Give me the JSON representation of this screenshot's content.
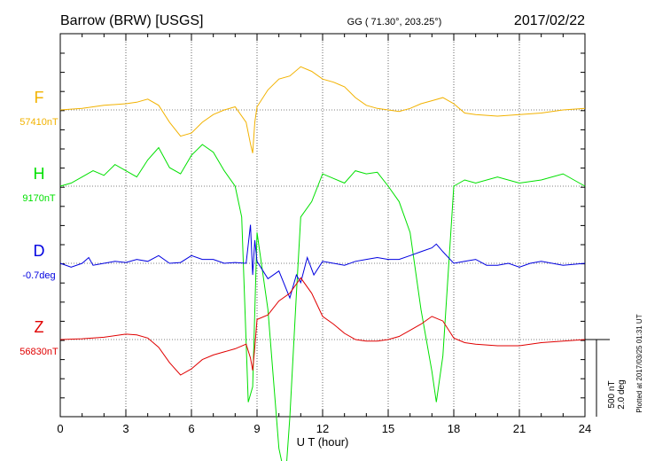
{
  "chart_data": {
    "type": "line",
    "title": "Barrow (BRW)  [USGS]",
    "coordinates": "GG ( 71.30°, 203.25°)",
    "date": "2017/02/22",
    "xlabel": "U T (hour)",
    "xlim": [
      0,
      24
    ],
    "x_ticks": [
      "0",
      "3",
      "6",
      "9",
      "12",
      "15",
      "18",
      "21",
      "24"
    ],
    "grid": true,
    "scale_label_1": "500 nT",
    "scale_label_2": "2.0 deg",
    "plotted_note": "Plotted at 2017/03/25 01:31  UT",
    "colors": {
      "F": "#f2b200",
      "H": "#00e000",
      "D": "#0000e0",
      "Z": "#e00000",
      "axis": "#000000",
      "grid": "#000000"
    },
    "series": [
      {
        "name": "F",
        "baseline": "57410nT",
        "color": "#f2b200",
        "x": [
          0,
          1,
          2,
          3,
          3.5,
          4,
          4.5,
          5,
          5.5,
          6,
          6.5,
          7,
          7.5,
          8,
          8.5,
          8.7,
          8.8,
          8.9,
          9,
          9.5,
          10,
          10.5,
          11,
          11.5,
          12,
          12.5,
          13,
          13.5,
          14,
          14.5,
          15,
          15.5,
          16,
          16.5,
          17,
          17.5,
          18,
          18.5,
          19,
          20,
          21,
          22,
          23,
          24
        ],
        "values": [
          0,
          10,
          30,
          40,
          50,
          70,
          30,
          -80,
          -170,
          -150,
          -80,
          -30,
          0,
          20,
          -80,
          -220,
          -280,
          -80,
          20,
          130,
          200,
          220,
          280,
          250,
          200,
          180,
          150,
          80,
          30,
          10,
          0,
          -10,
          10,
          40,
          60,
          80,
          40,
          -20,
          -30,
          -40,
          -30,
          -20,
          0,
          10
        ]
      },
      {
        "name": "H",
        "baseline": "9170nT",
        "color": "#00e000",
        "x": [
          0,
          0.5,
          1,
          1.5,
          2,
          2.5,
          3,
          3.5,
          4,
          4.5,
          5,
          5.5,
          6,
          6.5,
          7,
          7.5,
          8,
          8.3,
          8.6,
          8.8,
          9,
          9.5,
          10,
          10.3,
          10.5,
          10.8,
          11,
          11.5,
          12,
          12.5,
          13,
          13.5,
          14,
          14.5,
          15,
          15.5,
          16,
          16.5,
          17,
          17.2,
          17.5,
          18,
          18.5,
          19,
          20,
          21,
          22,
          23,
          24
        ],
        "values": [
          0,
          20,
          60,
          100,
          70,
          140,
          100,
          60,
          170,
          250,
          120,
          80,
          200,
          270,
          220,
          100,
          0,
          -200,
          -1400,
          -1300,
          -300,
          -800,
          -1700,
          -1900,
          -1500,
          -700,
          -200,
          -100,
          80,
          50,
          20,
          100,
          80,
          90,
          0,
          -100,
          -300,
          -800,
          -1200,
          -1400,
          -1100,
          0,
          40,
          20,
          60,
          20,
          40,
          80,
          0
        ]
      },
      {
        "name": "D",
        "baseline": "-0.7deg",
        "color": "#0000e0",
        "x": [
          0,
          0.5,
          1,
          1.3,
          1.5,
          2,
          2.5,
          3,
          3.5,
          4,
          4.5,
          5,
          5.5,
          6,
          6.5,
          7,
          7.5,
          8,
          8.5,
          8.7,
          8.8,
          8.9,
          9,
          9.5,
          10,
          10.5,
          10.8,
          11,
          11.3,
          11.6,
          12,
          12.5,
          13,
          13.5,
          14,
          14.5,
          15,
          15.5,
          16,
          16.5,
          17,
          17.2,
          17.5,
          18,
          18.5,
          19,
          19.5,
          20,
          20.5,
          21,
          21.5,
          22,
          23,
          24
        ],
        "values": [
          0,
          -0.1,
          0,
          0.15,
          -0.05,
          0,
          0.05,
          0.02,
          0.1,
          0.05,
          0.2,
          0,
          0.02,
          0.2,
          0.1,
          0.1,
          0,
          0.02,
          0,
          1.0,
          -0.3,
          0.6,
          0.05,
          -0.4,
          -0.2,
          -0.9,
          -0.3,
          -0.5,
          0.15,
          -0.3,
          0.05,
          0,
          -0.05,
          0.05,
          0.1,
          0.15,
          0.1,
          0.1,
          0.2,
          0.3,
          0.4,
          0.5,
          0.3,
          0,
          0.05,
          0.1,
          -0.05,
          -0.05,
          0,
          -0.1,
          0,
          0.05,
          -0.05,
          0
        ]
      },
      {
        "name": "Z",
        "baseline": "56830nT",
        "color": "#e00000",
        "x": [
          0,
          1,
          2,
          3,
          3.5,
          4,
          4.5,
          5,
          5.5,
          6,
          6.5,
          7,
          7.5,
          8,
          8.5,
          8.7,
          8.8,
          8.9,
          9,
          9.5,
          10,
          10.5,
          11,
          11.5,
          12,
          12.5,
          13,
          13.5,
          14,
          14.5,
          15,
          15.5,
          16,
          16.5,
          17,
          17.5,
          18,
          18.5,
          19,
          20,
          21,
          22,
          23,
          24
        ],
        "values": [
          0,
          5,
          15,
          35,
          30,
          10,
          -50,
          -150,
          -230,
          -190,
          -130,
          -100,
          -80,
          -60,
          -30,
          -120,
          -200,
          -50,
          130,
          160,
          250,
          300,
          400,
          300,
          150,
          100,
          40,
          0,
          -10,
          -10,
          0,
          20,
          60,
          100,
          150,
          120,
          10,
          -20,
          -30,
          -40,
          -40,
          -20,
          -10,
          0
        ]
      }
    ]
  }
}
